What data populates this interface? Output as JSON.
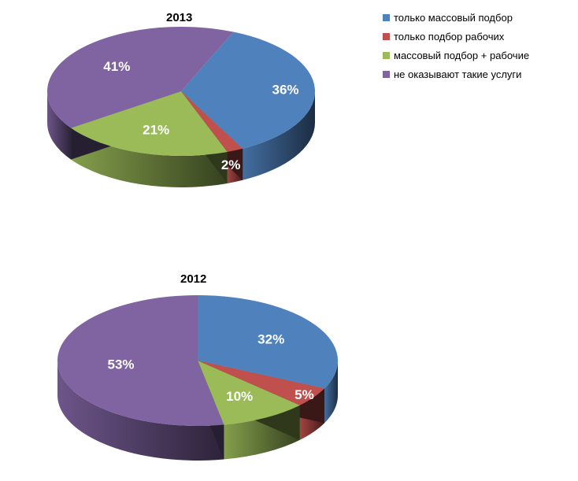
{
  "chart_data": [
    {
      "type": "pie",
      "title": "2013",
      "categories": [
        "только массовый подбор",
        "только подбор рабочих",
        "массовый подбор + рабочие",
        "не оказывают такие услуги"
      ],
      "values": [
        36,
        2,
        21,
        41
      ],
      "labels": [
        "36%",
        "2%",
        "21%",
        "41%"
      ],
      "style": "3d-tilted"
    },
    {
      "type": "pie",
      "title": "2012",
      "categories": [
        "только массовый подбор",
        "только подбор рабочих",
        "массовый подбор + рабочие",
        "не оказывают такие услуги"
      ],
      "values": [
        32,
        5,
        10,
        53
      ],
      "labels": [
        "32%",
        "5%",
        "10%",
        "53%"
      ],
      "style": "3d-tilted"
    }
  ],
  "legend": {
    "placement": "top-right",
    "items": [
      {
        "label": "только массовый подбор",
        "color": "#4f81bd"
      },
      {
        "label": "только подбор рабочих",
        "color": "#c0504d"
      },
      {
        "label": "массовый подбор + рабочие",
        "color": "#9bbb59"
      },
      {
        "label": "не оказывают такие услуги",
        "color": "#8064a2"
      }
    ]
  }
}
